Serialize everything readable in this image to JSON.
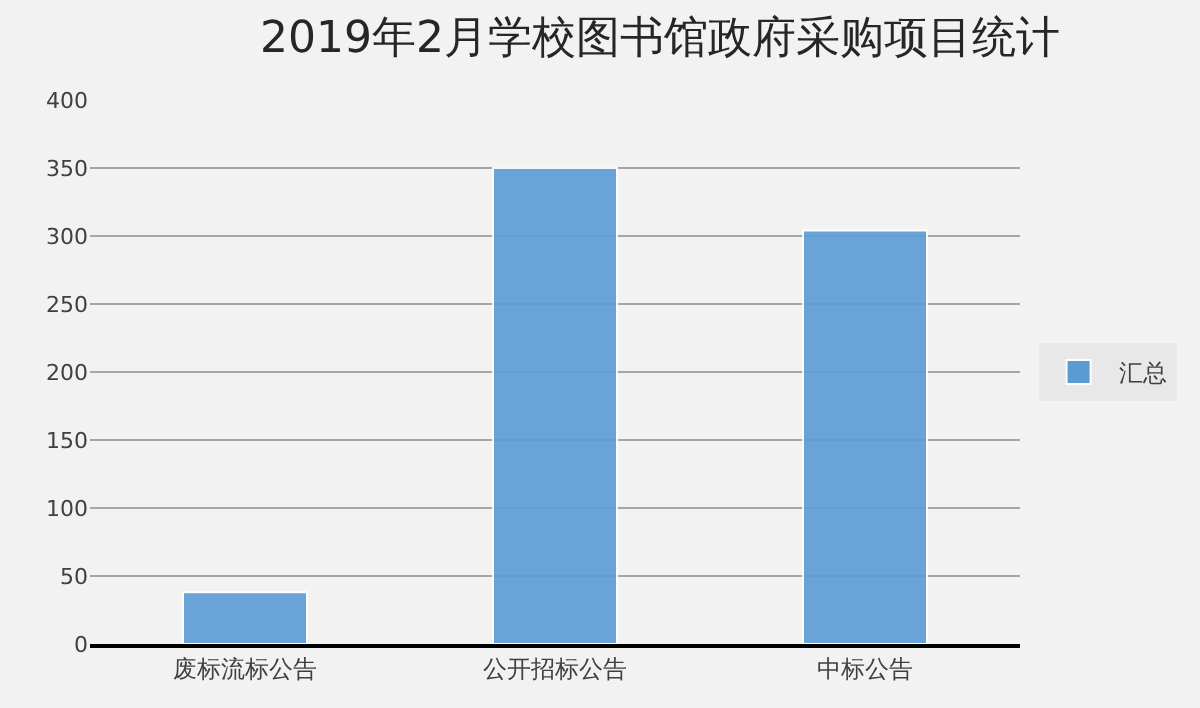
{
  "chart_data": {
    "type": "bar",
    "title": "2019年2月学校图书馆政府采购项目统计",
    "categories": [
      "废标流标公告",
      "公开招标公告",
      "中标公告"
    ],
    "series": [
      {
        "name": "汇总",
        "color": "#5b9bd5",
        "values": [
          38,
          350,
          304
        ]
      }
    ],
    "ylim": [
      0,
      400
    ],
    "yticks": [
      0,
      50,
      100,
      150,
      200,
      250,
      300,
      350,
      400
    ],
    "grid": "y",
    "legend": "right"
  }
}
